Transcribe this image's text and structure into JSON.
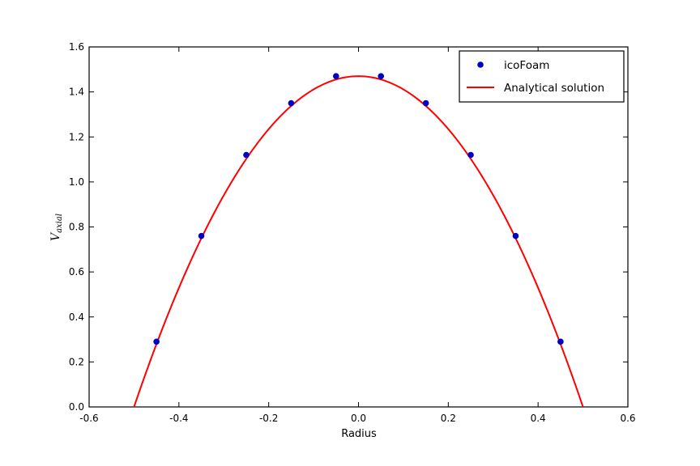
{
  "chart_data": {
    "type": "line",
    "title": "",
    "xlabel": "Radius",
    "ylabel": {
      "main": "V",
      "sub": "axial"
    },
    "xlim": [
      -0.6,
      0.6
    ],
    "ylim": [
      0.0,
      1.6
    ],
    "xticks": [
      "-0.6",
      "-0.4",
      "-0.2",
      "0.0",
      "0.2",
      "0.4",
      "0.6"
    ],
    "yticks": [
      "0.0",
      "0.2",
      "0.4",
      "0.6",
      "0.8",
      "1.0",
      "1.2",
      "1.4",
      "1.6"
    ],
    "grid": false,
    "legend_position": "top-right",
    "series": [
      {
        "name": "icoFoam",
        "kind": "scatter",
        "color": "#0000cc",
        "x": [
          -0.45,
          -0.35,
          -0.25,
          -0.15,
          -0.05,
          0.05,
          0.15,
          0.25,
          0.35,
          0.45
        ],
        "y": [
          0.29,
          0.76,
          1.12,
          1.35,
          1.47,
          1.47,
          1.35,
          1.12,
          0.76,
          0.29
        ]
      },
      {
        "name": "Analytical solution",
        "kind": "line",
        "color": "#ff0000",
        "formula": "1.47*(1-(r/0.5)^2)",
        "x_range": [
          -0.5,
          0.5
        ]
      }
    ]
  }
}
